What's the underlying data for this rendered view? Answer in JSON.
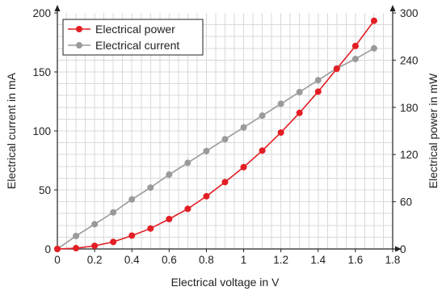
{
  "chart_data": {
    "type": "line",
    "x": [
      0,
      0.1,
      0.2,
      0.3,
      0.4,
      0.5,
      0.6,
      0.7,
      0.8,
      0.9,
      1.0,
      1.1,
      1.2,
      1.3,
      1.4,
      1.5,
      1.6,
      1.7
    ],
    "series": [
      {
        "name": "Electrical power",
        "axis": "right",
        "color": "#e31e24",
        "values": [
          0,
          1,
          4,
          9,
          17,
          26,
          38,
          51,
          67,
          85,
          104,
          125,
          148,
          173,
          200,
          229,
          258,
          290
        ]
      },
      {
        "name": "Electrical current",
        "axis": "left",
        "color": "#9a9a9a",
        "values": [
          0,
          11,
          21,
          31,
          42,
          52,
          63,
          73,
          83,
          93,
          103,
          113,
          123,
          133,
          143,
          153,
          161,
          170
        ]
      }
    ],
    "xlabel": "Electrical voltage in V",
    "ylabel": "Electrical current in mA",
    "y2label": "Electrical power in mW",
    "xlim": [
      0,
      1.8
    ],
    "ylim": [
      0,
      200
    ],
    "y2lim": [
      0,
      300
    ],
    "x_ticks": [
      "0",
      "0.2",
      "0.4",
      "0.6",
      "0.8",
      "1",
      "1.2",
      "1.4",
      "1.6",
      "1.8"
    ],
    "y_ticks": [
      "0",
      "50",
      "100",
      "150",
      "200"
    ],
    "y2_ticks": [
      "0",
      "60",
      "120",
      "180",
      "240",
      "300"
    ],
    "grid": true,
    "legend": "top-left"
  }
}
